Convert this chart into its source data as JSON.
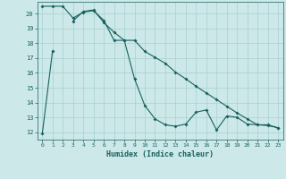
{
  "xlabel": "Humidex (Indice chaleur)",
  "background_color": "#cce8e8",
  "grid_color": "#a8d0d0",
  "line_color": "#1a6060",
  "xlim": [
    -0.5,
    23.5
  ],
  "ylim": [
    11.5,
    20.8
  ],
  "xticks": [
    0,
    1,
    2,
    3,
    4,
    5,
    6,
    7,
    8,
    9,
    10,
    11,
    12,
    13,
    14,
    15,
    16,
    17,
    18,
    19,
    20,
    21,
    22,
    23
  ],
  "yticks": [
    12,
    13,
    14,
    15,
    16,
    17,
    18,
    19,
    20
  ],
  "series1_x": [
    0,
    1,
    2,
    3,
    4,
    5,
    6,
    7,
    8,
    9,
    10,
    11,
    12,
    13,
    14,
    15,
    16,
    17,
    18,
    19,
    20,
    21,
    22,
    23
  ],
  "series1_y": [
    11.9,
    17.5,
    null,
    19.5,
    20.15,
    20.25,
    19.4,
    18.75,
    18.2,
    15.6,
    13.8,
    12.9,
    12.5,
    12.4,
    12.55,
    13.35,
    13.5,
    12.15,
    13.1,
    13.0,
    12.55,
    12.5,
    12.5,
    12.3
  ],
  "series2_x": [
    0,
    1,
    2,
    3,
    4,
    5,
    6,
    7,
    8,
    9,
    10,
    11,
    12,
    13,
    14,
    15,
    16,
    17,
    18,
    19,
    20,
    21,
    22,
    23
  ],
  "series2_y": [
    20.5,
    20.5,
    20.5,
    19.7,
    20.1,
    20.2,
    19.55,
    18.2,
    18.2,
    18.2,
    17.45,
    17.05,
    16.65,
    16.05,
    15.6,
    15.1,
    14.65,
    14.2,
    13.75,
    13.3,
    12.9,
    12.5,
    12.45,
    12.3
  ]
}
